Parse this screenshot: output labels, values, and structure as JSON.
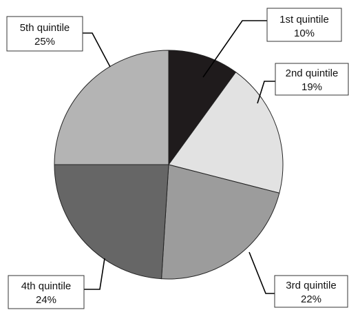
{
  "chart_data": {
    "type": "pie",
    "categories": [
      "1st quintile",
      "2nd quintile",
      "3rd quintile",
      "4th quintile",
      "5th quintile"
    ],
    "values": [
      10,
      19,
      22,
      24,
      25
    ],
    "value_labels": [
      "10%",
      "19%",
      "22%",
      "24%",
      "25%"
    ],
    "colors": [
      "#1f1b1c",
      "#e2e2e2",
      "#9c9c9c",
      "#666666",
      "#b4b4b4"
    ],
    "start": "12 o'clock",
    "direction": "clockwise"
  }
}
